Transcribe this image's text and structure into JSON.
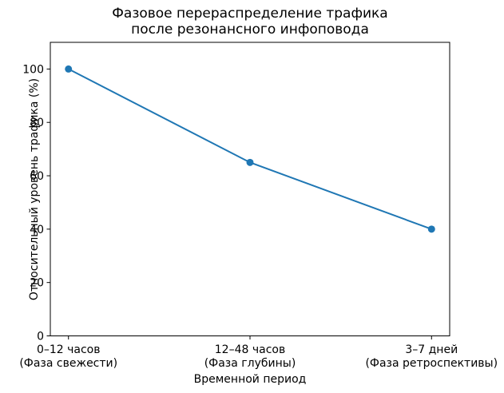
{
  "chart_data": {
    "type": "line",
    "title": "Фазовое перераспределение трафика\nпосле резонансного инфоповода",
    "title_lines": [
      "Фазовое перераспределение трафика",
      "после резонансного инфоповода"
    ],
    "xlabel": "Временной период",
    "ylabel": "Относительный уровень трафика (%)",
    "categories": [
      "0–12 часов (Фаза свежести)",
      "12–48 часов (Фаза глубины)",
      "3–7 дней (Фаза ретроспективы)"
    ],
    "category_lines": [
      [
        "0–12 часов",
        "(Фаза свежести)"
      ],
      [
        "12–48 часов",
        "(Фаза глубины)"
      ],
      [
        "3–7 дней",
        "(Фаза ретроспективы)"
      ]
    ],
    "values": [
      100,
      65,
      40
    ],
    "yticks": [
      0,
      20,
      40,
      60,
      80,
      100
    ],
    "ylim": [
      0,
      110
    ],
    "grid": false,
    "legend": "none",
    "marker": "circle",
    "line_color": "#1f77b4",
    "text_color": "#000000",
    "background_color": "#ffffff"
  }
}
